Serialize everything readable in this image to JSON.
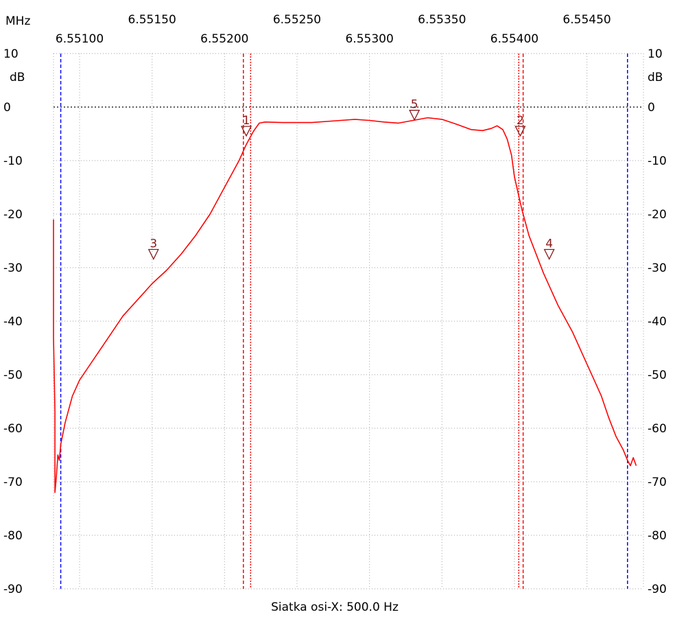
{
  "chart_data": {
    "type": "line",
    "x_unit_label": "MHz",
    "y_unit_label": "dB",
    "xlabel": "Siatka osi-X: 500.0 Hz",
    "x_range": [
      6.55082,
      6.55489
    ],
    "ylim": [
      -90,
      10
    ],
    "x_ticks_top": [
      "6.55150",
      "6.55250",
      "6.55350",
      "6.55450"
    ],
    "x_ticks_bottom": [
      "6.55100",
      "6.55200",
      "6.55300",
      "6.55400"
    ],
    "x_tick_values_top": [
      6.5515,
      6.5525,
      6.5535,
      6.5545
    ],
    "x_tick_values_bottom": [
      6.551,
      6.552,
      6.553,
      6.554
    ],
    "y_ticks": [
      "10",
      "0",
      "-10",
      "-20",
      "-30",
      "-40",
      "-50",
      "-60",
      "-70",
      "-80",
      "-90"
    ],
    "y_tick_values": [
      10,
      0,
      -10,
      -20,
      -30,
      -40,
      -50,
      -60,
      -70,
      -80,
      -90
    ],
    "grid": true,
    "reference_level_db": 0,
    "series": [
      {
        "color": "#ff0000",
        "points": [
          [
            6.55082,
            -21
          ],
          [
            6.55082,
            -43
          ],
          [
            6.55083,
            -57
          ],
          [
            6.55083,
            -72
          ],
          [
            6.55084,
            -69
          ],
          [
            6.55085,
            -65
          ],
          [
            6.55086,
            -66
          ],
          [
            6.55087,
            -63
          ],
          [
            6.5509,
            -59
          ],
          [
            6.55095,
            -54
          ],
          [
            6.551,
            -51
          ],
          [
            6.5511,
            -47
          ],
          [
            6.5512,
            -43
          ],
          [
            6.5513,
            -39
          ],
          [
            6.5514,
            -36
          ],
          [
            6.5515,
            -33
          ],
          [
            6.5516,
            -30.5
          ],
          [
            6.5517,
            -27.5
          ],
          [
            6.5518,
            -24
          ],
          [
            6.5519,
            -20
          ],
          [
            6.552,
            -15
          ],
          [
            6.5521,
            -10
          ],
          [
            6.55215,
            -7
          ],
          [
            6.5522,
            -4.5
          ],
          [
            6.55224,
            -3
          ],
          [
            6.55228,
            -2.8
          ],
          [
            6.5524,
            -2.9
          ],
          [
            6.5526,
            -2.9
          ],
          [
            6.5528,
            -2.5
          ],
          [
            6.5529,
            -2.3
          ],
          [
            6.553,
            -2.5
          ],
          [
            6.5531,
            -2.8
          ],
          [
            6.5532,
            -3
          ],
          [
            6.5533,
            -2.5
          ],
          [
            6.5534,
            -2
          ],
          [
            6.5535,
            -2.3
          ],
          [
            6.5536,
            -3.2
          ],
          [
            6.5537,
            -4.2
          ],
          [
            6.55378,
            -4.4
          ],
          [
            6.55384,
            -4
          ],
          [
            6.55388,
            -3.5
          ],
          [
            6.55392,
            -4.2
          ],
          [
            6.55395,
            -6
          ],
          [
            6.55398,
            -9
          ],
          [
            6.554,
            -13
          ],
          [
            6.55405,
            -19
          ],
          [
            6.5541,
            -24
          ],
          [
            6.5542,
            -31
          ],
          [
            6.5543,
            -37
          ],
          [
            6.5544,
            -42
          ],
          [
            6.5545,
            -48
          ],
          [
            6.55455,
            -51
          ],
          [
            6.5546,
            -54
          ],
          [
            6.55465,
            -58
          ],
          [
            6.5547,
            -61.5
          ],
          [
            6.55475,
            -64
          ],
          [
            6.55478,
            -66
          ],
          [
            6.5548,
            -67
          ],
          [
            6.55482,
            -65.5
          ],
          [
            6.55484,
            -67
          ]
        ]
      }
    ],
    "cursors": [
      {
        "x": 6.55087,
        "style": "dashed",
        "color": "#0000ff"
      },
      {
        "x": 6.55478,
        "style": "dashed",
        "color": "#0000ff"
      },
      {
        "x": 6.55213,
        "style": "dashed",
        "color": "#ff0000"
      },
      {
        "x": 6.55218,
        "style": "dotted",
        "color": "#ff0000"
      },
      {
        "x": 6.55403,
        "style": "dotted",
        "color": "#ff0000"
      },
      {
        "x": 6.55406,
        "style": "dashed",
        "color": "#ff0000"
      }
    ],
    "markers": [
      {
        "label": "1",
        "x": 6.55215,
        "y": -4.5
      },
      {
        "label": "2",
        "x": 6.55404,
        "y": -4.5
      },
      {
        "label": "3",
        "x": 6.55151,
        "y": -27.5
      },
      {
        "label": "4",
        "x": 6.55424,
        "y": -27.5
      },
      {
        "label": "5",
        "x": 6.55331,
        "y": -1.5
      }
    ]
  }
}
